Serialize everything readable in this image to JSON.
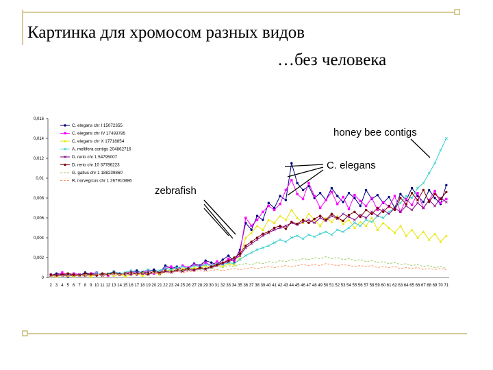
{
  "title": "Картинка для хромосом разных видов",
  "subtitle": "…без человека",
  "chart_data": {
    "type": "line",
    "categories": [
      2,
      3,
      4,
      5,
      6,
      7,
      8,
      9,
      10,
      11,
      12,
      13,
      14,
      15,
      16,
      17,
      18,
      19,
      20,
      21,
      22,
      23,
      24,
      25,
      26,
      27,
      28,
      29,
      30,
      31,
      32,
      33,
      34,
      35,
      36,
      37,
      38,
      39,
      40,
      41,
      42,
      43,
      44,
      45,
      46,
      47,
      48,
      49,
      50,
      51,
      52,
      53,
      54,
      55,
      56,
      57,
      58,
      59,
      60,
      61,
      62,
      63,
      64,
      65,
      66,
      67,
      68,
      69,
      70,
      71
    ],
    "ylim": [
      0,
      0.016
    ],
    "yticks": [
      0,
      {
        "value": 0.002,
        "label": "0,002"
      },
      {
        "value": 0.004,
        "label": "0,004"
      },
      {
        "value": 0.006,
        "label": "0,006"
      },
      {
        "value": 0.008,
        "label": "0,008"
      },
      {
        "value": 0.01,
        "label": "0,01"
      },
      {
        "value": 0.012,
        "label": "0,012"
      },
      {
        "value": 0.014,
        "label": "0,014"
      },
      {
        "value": 0.016,
        "label": "0,016"
      }
    ],
    "annotations": [
      "honey bee contigs",
      "C. elegans",
      "zebrafish"
    ],
    "series": [
      {
        "name": "C. elegans chr I 15072355",
        "color": "#000080",
        "marker": "circle",
        "values": [
          0.0002,
          0.0004,
          0.0003,
          0.0001,
          0.0003,
          0.0002,
          0.0005,
          0.0003,
          0.0002,
          0.0004,
          0.0003,
          0.0006,
          0.0004,
          0.0003,
          0.0005,
          0.0007,
          0.0004,
          0.0006,
          0.0008,
          0.0005,
          0.0012,
          0.0009,
          0.0011,
          0.0008,
          0.001,
          0.0014,
          0.0012,
          0.0017,
          0.0015,
          0.0013,
          0.0018,
          0.0022,
          0.0016,
          0.0028,
          0.0055,
          0.0048,
          0.0062,
          0.0058,
          0.0075,
          0.007,
          0.0082,
          0.0078,
          0.0115,
          0.0095,
          0.0088,
          0.0092,
          0.008,
          0.0085,
          0.0078,
          0.009,
          0.0082,
          0.0076,
          0.0085,
          0.008,
          0.0072,
          0.0088,
          0.0079,
          0.0083,
          0.0075,
          0.0081,
          0.007,
          0.0084,
          0.0078,
          0.009,
          0.0082,
          0.0076,
          0.0088,
          0.008,
          0.0074,
          0.0093
        ]
      },
      {
        "name": "C. elegans chr IV 17493785",
        "color": "#ff00ff",
        "marker": "square",
        "values": [
          0.0003,
          0.0002,
          0.0005,
          0.0002,
          0.0004,
          0.0003,
          0.0002,
          0.0004,
          0.0005,
          0.0003,
          0.0002,
          0.0005,
          0.0003,
          0.0004,
          0.0006,
          0.0004,
          0.0005,
          0.0007,
          0.0004,
          0.0006,
          0.0009,
          0.0011,
          0.0008,
          0.0012,
          0.001,
          0.0013,
          0.0011,
          0.0015,
          0.0012,
          0.0016,
          0.0014,
          0.0019,
          0.0017,
          0.0025,
          0.006,
          0.0052,
          0.0058,
          0.0066,
          0.0072,
          0.0068,
          0.0074,
          0.0088,
          0.0098,
          0.0084,
          0.0079,
          0.0095,
          0.0082,
          0.007,
          0.0078,
          0.0086,
          0.0074,
          0.0081,
          0.0069,
          0.0083,
          0.0077,
          0.0072,
          0.008,
          0.0068,
          0.0076,
          0.0071,
          0.0082,
          0.0066,
          0.0079,
          0.0073,
          0.0085,
          0.007,
          0.0078,
          0.0087,
          0.0075,
          0.0079
        ]
      },
      {
        "name": "C. elegans chr X 17718854",
        "color": "#e6e600",
        "marker": "triangle",
        "values": [
          0.0002,
          0.0001,
          0.0003,
          0.0002,
          0.0001,
          0.0003,
          0.0002,
          0.0001,
          0.0003,
          0.0002,
          0.0004,
          0.0002,
          0.0003,
          0.0001,
          0.0003,
          0.0004,
          0.0002,
          0.0003,
          0.0005,
          0.0003,
          0.0006,
          0.0008,
          0.0007,
          0.0009,
          0.0008,
          0.001,
          0.0009,
          0.0012,
          0.001,
          0.0013,
          0.0011,
          0.0014,
          0.0013,
          0.002,
          0.004,
          0.0045,
          0.0052,
          0.0048,
          0.0058,
          0.0055,
          0.0062,
          0.0058,
          0.0068,
          0.006,
          0.0055,
          0.0064,
          0.0058,
          0.0052,
          0.006,
          0.0056,
          0.0062,
          0.0054,
          0.0058,
          0.005,
          0.0056,
          0.0052,
          0.006,
          0.0048,
          0.0055,
          0.005,
          0.0045,
          0.0052,
          0.0042,
          0.0048,
          0.004,
          0.0046,
          0.0038,
          0.0044,
          0.0036,
          0.0042
        ]
      },
      {
        "name": "A. mellifera contigs 204862716",
        "color": "#33cccc",
        "marker": "x",
        "values": [
          0.0002,
          0.0003,
          0.0002,
          0.0004,
          0.0003,
          0.0002,
          0.0004,
          0.0003,
          0.0005,
          0.0003,
          0.0004,
          0.0006,
          0.0004,
          0.0005,
          0.0007,
          0.0005,
          0.0006,
          0.0008,
          0.0006,
          0.0007,
          0.0009,
          0.0008,
          0.001,
          0.0011,
          0.0009,
          0.0012,
          0.0011,
          0.0013,
          0.0012,
          0.0014,
          0.0013,
          0.0015,
          0.0014,
          0.0018,
          0.0022,
          0.0025,
          0.0028,
          0.003,
          0.0032,
          0.0035,
          0.0038,
          0.0036,
          0.004,
          0.0042,
          0.0039,
          0.0043,
          0.0041,
          0.0044,
          0.0046,
          0.0043,
          0.0048,
          0.0046,
          0.005,
          0.0055,
          0.0052,
          0.0058,
          0.0056,
          0.0062,
          0.006,
          0.0066,
          0.007,
          0.0075,
          0.0082,
          0.008,
          0.009,
          0.0095,
          0.0105,
          0.0115,
          0.0128,
          0.014
        ]
      },
      {
        "name": "D. rerio chr 1 54795007",
        "color": "#800080",
        "marker": "x",
        "values": [
          0.0002,
          0.0003,
          0.0002,
          0.0003,
          0.0002,
          0.0003,
          0.0002,
          0.0004,
          0.0003,
          0.0002,
          0.0003,
          0.0004,
          0.0003,
          0.0004,
          0.0003,
          0.0005,
          0.0004,
          0.0003,
          0.0005,
          0.0004,
          0.0006,
          0.0005,
          0.0007,
          0.0006,
          0.0008,
          0.0007,
          0.0009,
          0.0008,
          0.001,
          0.0012,
          0.0014,
          0.0016,
          0.0018,
          0.0022,
          0.003,
          0.0034,
          0.0038,
          0.0042,
          0.0045,
          0.0048,
          0.005,
          0.0052,
          0.0055,
          0.0053,
          0.0056,
          0.0058,
          0.0055,
          0.006,
          0.0057,
          0.0062,
          0.0059,
          0.0064,
          0.0061,
          0.0058,
          0.0063,
          0.006,
          0.0066,
          0.0062,
          0.0068,
          0.0064,
          0.007,
          0.0066,
          0.0072,
          0.0068,
          0.0075,
          0.007,
          0.0078,
          0.0072,
          0.008,
          0.0076
        ]
      },
      {
        "name": "D. rerio chr 10 37786223",
        "color": "#800000",
        "marker": "circle",
        "values": [
          0.0003,
          0.0002,
          0.0003,
          0.0004,
          0.0003,
          0.0002,
          0.0004,
          0.0003,
          0.0002,
          0.0004,
          0.0003,
          0.0005,
          0.0003,
          0.0004,
          0.0005,
          0.0003,
          0.0005,
          0.0004,
          0.0006,
          0.0005,
          0.0007,
          0.0006,
          0.0008,
          0.0007,
          0.0009,
          0.0008,
          0.001,
          0.0009,
          0.0011,
          0.0013,
          0.0015,
          0.0017,
          0.002,
          0.0024,
          0.0032,
          0.0036,
          0.004,
          0.0044,
          0.0046,
          0.005,
          0.0052,
          0.0049,
          0.0056,
          0.0054,
          0.0058,
          0.0055,
          0.0059,
          0.0062,
          0.0058,
          0.0064,
          0.006,
          0.0057,
          0.0063,
          0.0066,
          0.0061,
          0.0068,
          0.0064,
          0.007,
          0.0066,
          0.0072,
          0.0068,
          0.008,
          0.0074,
          0.0085,
          0.0078,
          0.0088,
          0.0076,
          0.0084,
          0.0079,
          0.0086
        ]
      },
      {
        "name": "G. gallus chr 1 188239860",
        "color": "#99cc66",
        "marker": "none",
        "values": [
          0.0001,
          0.0002,
          0.0001,
          0.0002,
          0.0001,
          0.0002,
          0.0003,
          0.0002,
          0.0003,
          0.0002,
          0.0003,
          0.0004,
          0.0003,
          0.0004,
          0.0005,
          0.0004,
          0.0005,
          0.0006,
          0.0005,
          0.0006,
          0.0007,
          0.0006,
          0.0008,
          0.0007,
          0.0008,
          0.0009,
          0.0008,
          0.001,
          0.0009,
          0.0011,
          0.001,
          0.0012,
          0.0011,
          0.0013,
          0.0014,
          0.0013,
          0.0015,
          0.0014,
          0.0016,
          0.0015,
          0.0017,
          0.0016,
          0.0018,
          0.0017,
          0.0019,
          0.0018,
          0.002,
          0.0019,
          0.0021,
          0.0019,
          0.002,
          0.0018,
          0.0019,
          0.0017,
          0.0018,
          0.0016,
          0.0017,
          0.0015,
          0.0016,
          0.0014,
          0.0015,
          0.0013,
          0.0014,
          0.0012,
          0.0013,
          0.0011,
          0.0012,
          0.001,
          0.0011,
          0.0009
        ]
      },
      {
        "name": "R. norvegicus chr 1 267910886",
        "color": "#ff9966",
        "marker": "none",
        "values": [
          0.0001,
          0.0001,
          0.0002,
          0.0001,
          0.0002,
          0.0001,
          0.0002,
          0.0002,
          0.0003,
          0.0002,
          0.0003,
          0.0002,
          0.0003,
          0.0003,
          0.0004,
          0.0003,
          0.0004,
          0.0004,
          0.0005,
          0.0004,
          0.0005,
          0.0005,
          0.0006,
          0.0005,
          0.0006,
          0.0006,
          0.0007,
          0.0006,
          0.0007,
          0.0008,
          0.0007,
          0.0008,
          0.0009,
          0.0008,
          0.0009,
          0.001,
          0.0009,
          0.001,
          0.0011,
          0.001,
          0.0011,
          0.0012,
          0.0011,
          0.0012,
          0.0013,
          0.0012,
          0.0013,
          0.0012,
          0.0014,
          0.0013,
          0.0012,
          0.0013,
          0.0012,
          0.0011,
          0.0012,
          0.0011,
          0.0012,
          0.001,
          0.0011,
          0.001,
          0.0011,
          0.0009,
          0.001,
          0.0009,
          0.001,
          0.0008,
          0.0009,
          0.0008,
          0.0009,
          0.0008
        ]
      }
    ]
  }
}
